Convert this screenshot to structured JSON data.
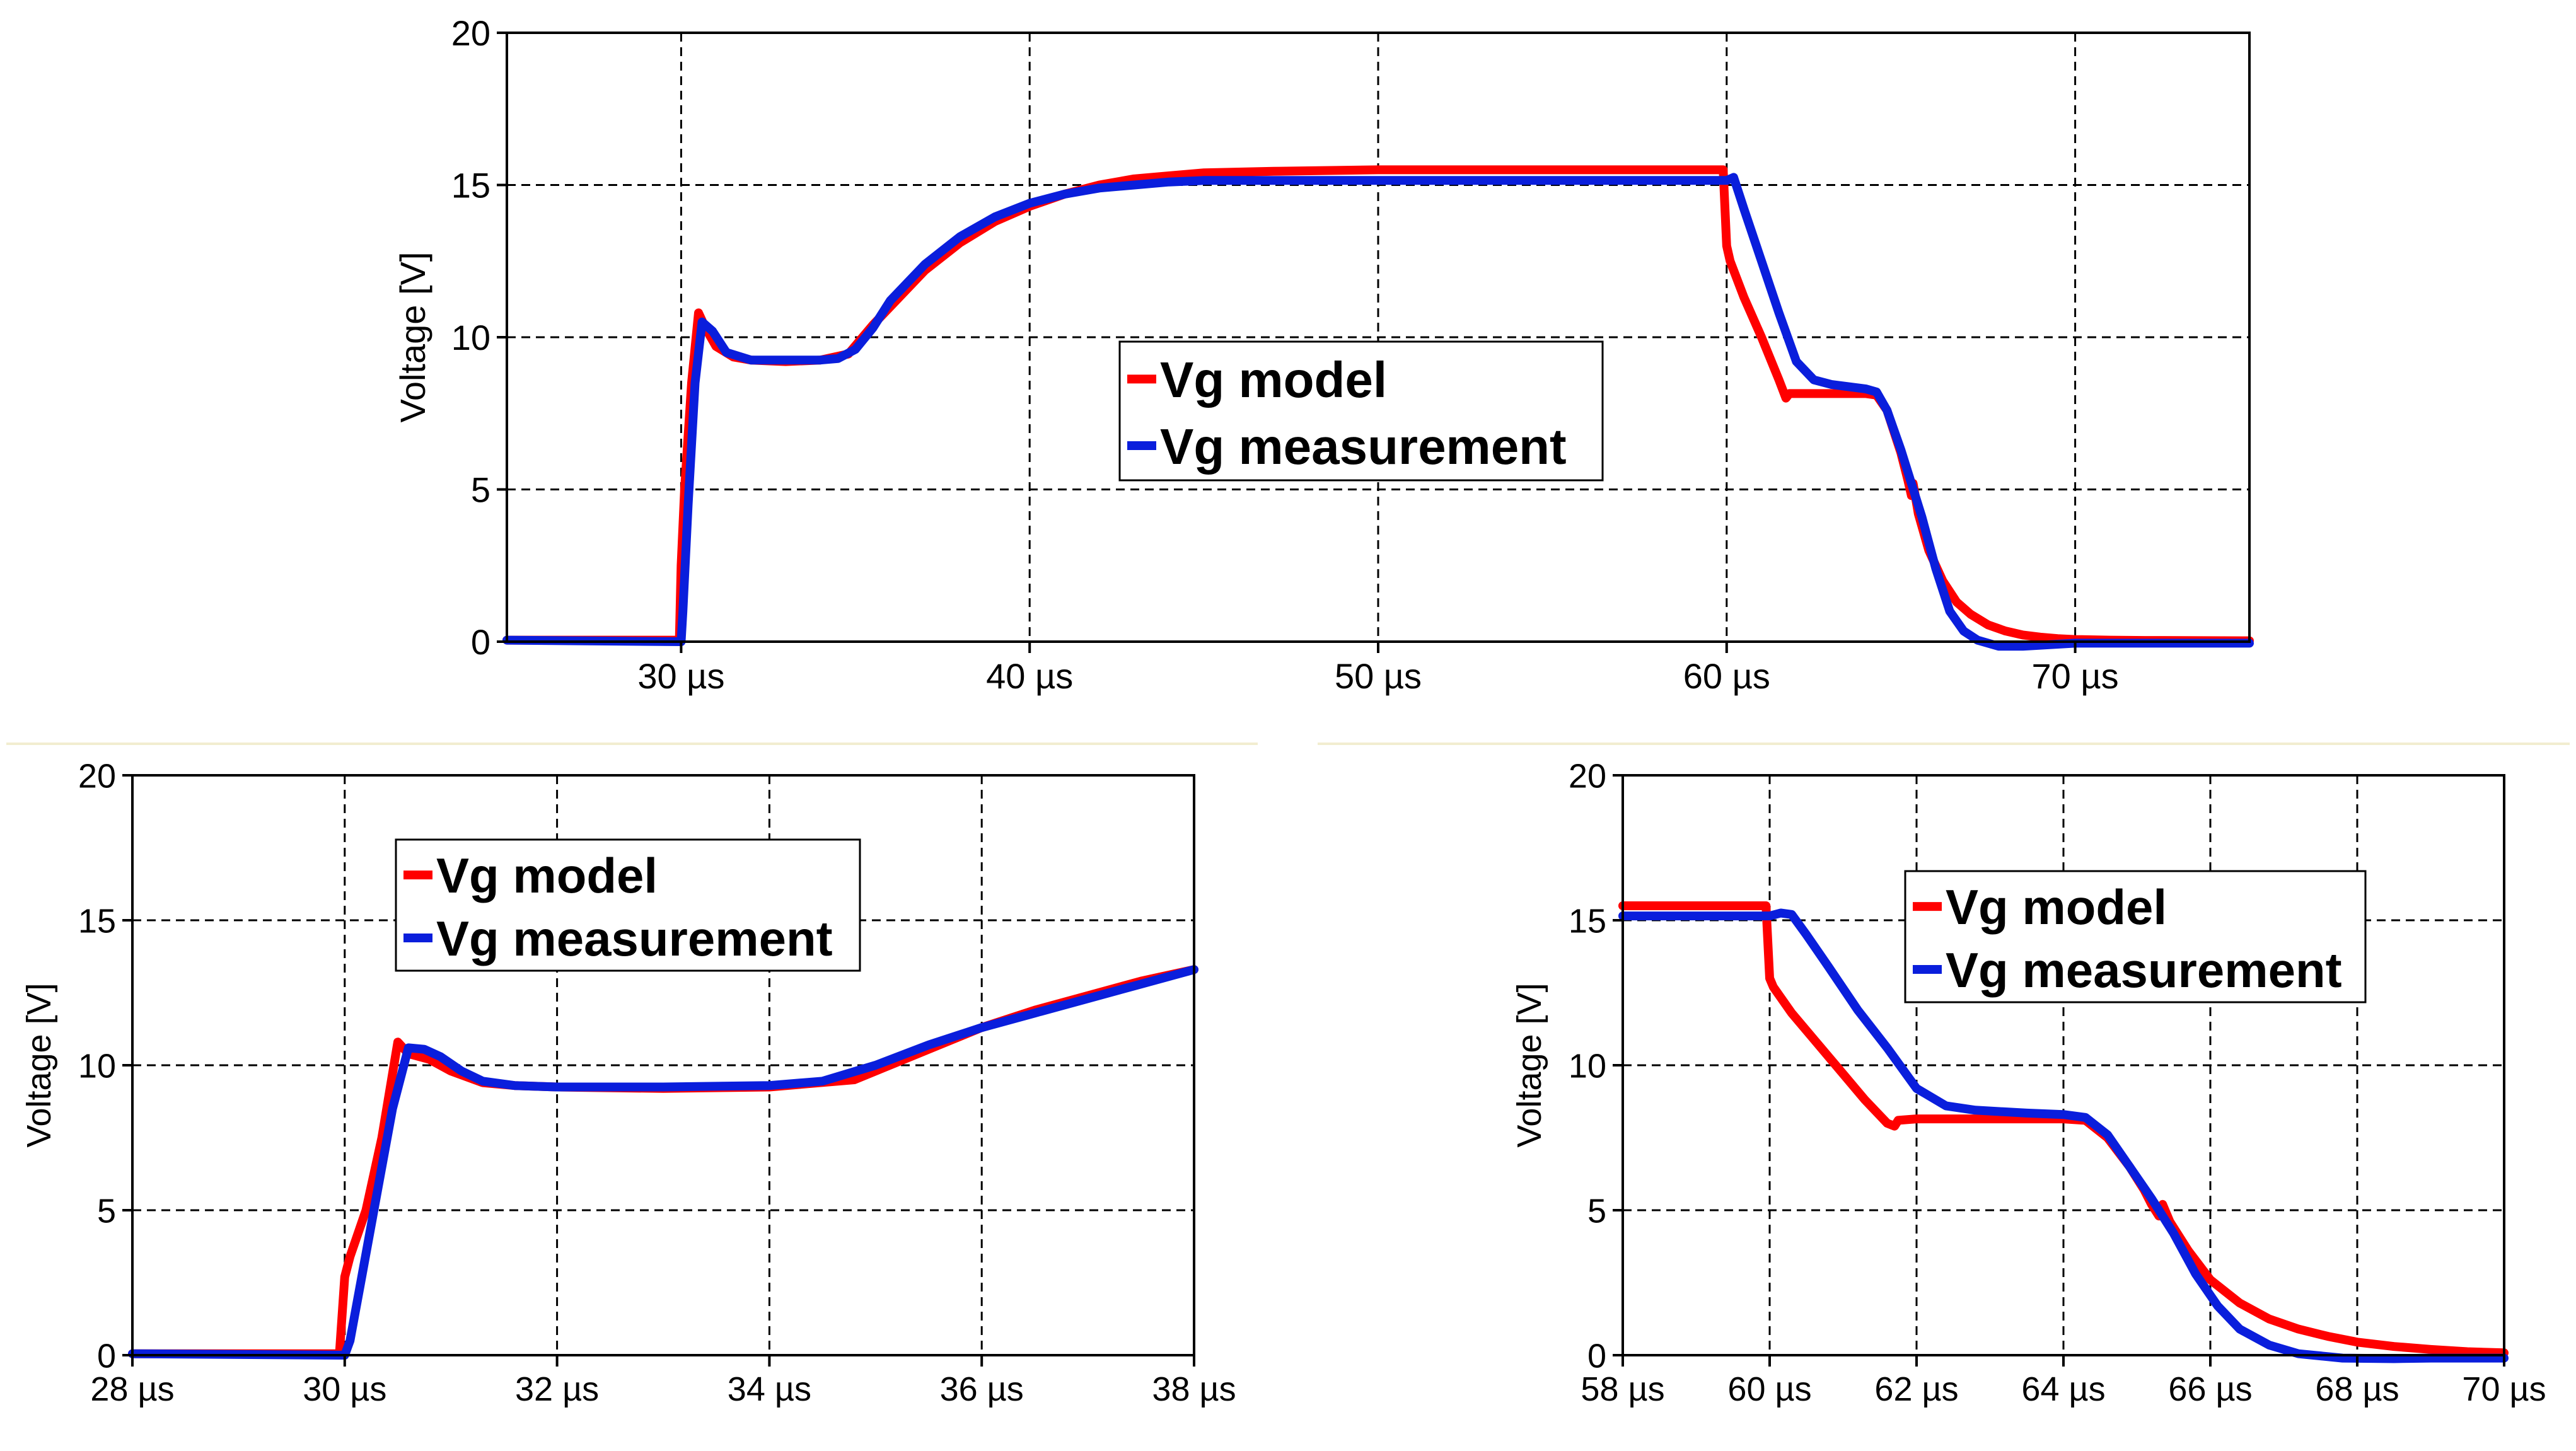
{
  "chart_data": [
    {
      "type": "line",
      "panel": "top",
      "title": "",
      "xlabel": "",
      "ylabel": "Voltage [V]",
      "xlim": [
        25,
        75
      ],
      "ylim": [
        0,
        20
      ],
      "xticks": [
        30,
        40,
        50,
        60,
        70
      ],
      "xtick_labels": [
        "30 µs",
        "40 µs",
        "50 µs",
        "60 µs",
        "70 µs"
      ],
      "yticks": [
        0,
        5,
        10,
        15,
        20
      ],
      "ytick_labels": [
        "0",
        "5",
        "10",
        "15",
        "20"
      ],
      "grid": true,
      "legend_position": "center",
      "series": [
        {
          "name": "Vg model",
          "color": "#ff0000",
          "x": [
            25,
            29.95,
            30.0,
            30.1,
            30.3,
            30.5,
            30.7,
            31.0,
            31.5,
            32,
            33,
            34,
            34.8,
            35.5,
            36,
            37,
            38,
            39,
            40,
            41,
            42,
            43,
            44,
            45,
            47,
            50,
            55,
            59.9,
            60.0,
            60.1,
            60.5,
            61.0,
            61.5,
            61.7,
            61.8,
            62,
            63,
            64,
            64.3,
            64.6,
            65.0,
            65.2,
            65.3,
            65.35,
            65.5,
            65.8,
            66.2,
            66.6,
            67,
            67.5,
            68,
            68.5,
            69,
            69.5,
            70,
            71,
            72,
            75
          ],
          "y": [
            0.05,
            0.05,
            2.5,
            5.0,
            8.5,
            10.8,
            10.3,
            9.7,
            9.35,
            9.25,
            9.2,
            9.25,
            9.45,
            10.4,
            11.0,
            12.2,
            13.1,
            13.8,
            14.3,
            14.7,
            15.0,
            15.2,
            15.3,
            15.4,
            15.45,
            15.5,
            15.5,
            15.5,
            13.0,
            12.5,
            11.3,
            10.0,
            8.6,
            8.0,
            8.15,
            8.15,
            8.15,
            8.15,
            8.1,
            7.6,
            6.2,
            5.3,
            4.8,
            5.2,
            4.2,
            3.0,
            2.0,
            1.3,
            0.9,
            0.55,
            0.35,
            0.22,
            0.15,
            0.1,
            0.07,
            0.05,
            0.04,
            0.03
          ]
        },
        {
          "name": "Vg measurement",
          "color": "#0a1edc",
          "x": [
            25,
            30.0,
            30.05,
            30.2,
            30.4,
            30.6,
            30.9,
            31.3,
            32,
            33,
            34,
            34.5,
            35,
            35.5,
            36,
            37,
            38,
            39,
            40,
            41,
            42,
            43,
            44,
            45,
            47,
            50,
            55,
            60.0,
            60.2,
            60.3,
            60.5,
            61,
            61.5,
            62,
            62.5,
            63,
            64,
            64.3,
            64.6,
            65,
            65.3,
            65.6,
            66,
            66.4,
            66.8,
            67.2,
            67.8,
            68.5,
            70,
            72,
            75
          ],
          "y": [
            0.05,
            0.0,
            1.0,
            4.5,
            8.5,
            10.5,
            10.2,
            9.5,
            9.25,
            9.25,
            9.25,
            9.3,
            9.6,
            10.3,
            11.2,
            12.4,
            13.3,
            13.95,
            14.4,
            14.7,
            14.9,
            15.0,
            15.1,
            15.15,
            15.15,
            15.15,
            15.15,
            15.15,
            15.25,
            14.9,
            14.2,
            12.5,
            10.8,
            9.2,
            8.6,
            8.45,
            8.3,
            8.2,
            7.6,
            6.3,
            5.2,
            4.1,
            2.4,
            1.0,
            0.35,
            0.05,
            -0.15,
            -0.15,
            -0.05,
            -0.05,
            -0.05
          ]
        }
      ]
    },
    {
      "type": "line",
      "panel": "bottom-left",
      "title": "",
      "xlabel": "",
      "ylabel": "Voltage [V]",
      "xlim": [
        28,
        38
      ],
      "ylim": [
        0,
        20
      ],
      "xticks": [
        28,
        30,
        32,
        34,
        36,
        38
      ],
      "xtick_labels": [
        "28 µs",
        "30 µs",
        "32 µs",
        "34 µs",
        "36 µs",
        "38 µs"
      ],
      "yticks": [
        0,
        5,
        10,
        15,
        20
      ],
      "ytick_labels": [
        "0",
        "5",
        "10",
        "15",
        "20"
      ],
      "grid": true,
      "legend_position": "top-left",
      "series": [
        {
          "name": "Vg model",
          "color": "#ff0000",
          "x": [
            28,
            29.95,
            30.0,
            30.05,
            30.2,
            30.35,
            30.5,
            30.6,
            30.8,
            31.0,
            31.3,
            31.6,
            32,
            33,
            34,
            34.8,
            35.2,
            35.6,
            36,
            36.5,
            37,
            37.5,
            38
          ],
          "y": [
            0.05,
            0.05,
            2.7,
            3.4,
            5.0,
            7.5,
            10.8,
            10.4,
            10.2,
            9.8,
            9.4,
            9.3,
            9.25,
            9.2,
            9.25,
            9.5,
            10.1,
            10.7,
            11.3,
            11.9,
            12.4,
            12.9,
            13.3
          ]
        },
        {
          "name": "Vg measurement",
          "color": "#0a1edc",
          "x": [
            28,
            30.0,
            30.05,
            30.15,
            30.3,
            30.45,
            30.6,
            30.75,
            30.9,
            31.1,
            31.3,
            31.6,
            32,
            33,
            34,
            34.5,
            35.0,
            35.5,
            36,
            36.5,
            37,
            37.5,
            38
          ],
          "y": [
            0.05,
            0.0,
            0.5,
            2.5,
            5.5,
            8.5,
            10.6,
            10.55,
            10.3,
            9.8,
            9.45,
            9.3,
            9.25,
            9.25,
            9.3,
            9.45,
            10.0,
            10.7,
            11.3,
            11.8,
            12.3,
            12.8,
            13.3
          ]
        }
      ]
    },
    {
      "type": "line",
      "panel": "bottom-right",
      "title": "",
      "xlabel": "",
      "ylabel": "Voltage [V]",
      "xlim": [
        58,
        70
      ],
      "ylim": [
        0,
        20
      ],
      "xticks": [
        58,
        60,
        62,
        64,
        66,
        68,
        70
      ],
      "xtick_labels": [
        "58 µs",
        "60 µs",
        "62 µs",
        "64 µs",
        "66 µs",
        "68 µs",
        "70 µs"
      ],
      "yticks": [
        0,
        5,
        10,
        15,
        20
      ],
      "ytick_labels": [
        "0",
        "5",
        "10",
        "15",
        "20"
      ],
      "grid": true,
      "legend_position": "top-right",
      "series": [
        {
          "name": "Vg model",
          "color": "#ff0000",
          "x": [
            58,
            59.95,
            60.0,
            60.05,
            60.3,
            60.6,
            61.0,
            61.3,
            61.6,
            61.7,
            61.75,
            62,
            63,
            64,
            64.3,
            64.6,
            64.9,
            65.1,
            65.2,
            65.3,
            65.35,
            65.45,
            65.7,
            66.0,
            66.4,
            66.8,
            67.2,
            67.6,
            68.0,
            68.5,
            69,
            69.5,
            70
          ],
          "y": [
            15.5,
            15.5,
            13.0,
            12.7,
            11.8,
            10.9,
            9.7,
            8.8,
            8.0,
            7.9,
            8.1,
            8.15,
            8.15,
            8.15,
            8.1,
            7.5,
            6.5,
            5.7,
            5.2,
            4.8,
            5.2,
            4.6,
            3.6,
            2.6,
            1.8,
            1.25,
            0.9,
            0.65,
            0.45,
            0.3,
            0.2,
            0.12,
            0.08
          ]
        },
        {
          "name": "Vg measurement",
          "color": "#0a1edc",
          "x": [
            58,
            60.0,
            60.15,
            60.3,
            60.5,
            60.8,
            61.2,
            61.6,
            62.0,
            62.4,
            62.8,
            63.5,
            64.0,
            64.3,
            64.6,
            64.9,
            65.2,
            65.5,
            65.8,
            66.1,
            66.4,
            66.8,
            67.2,
            67.8,
            68.5,
            69,
            70
          ],
          "y": [
            15.15,
            15.15,
            15.25,
            15.2,
            14.5,
            13.4,
            11.9,
            10.6,
            9.2,
            8.6,
            8.45,
            8.35,
            8.3,
            8.2,
            7.6,
            6.5,
            5.4,
            4.2,
            2.8,
            1.7,
            0.9,
            0.35,
            0.05,
            -0.1,
            -0.12,
            -0.1,
            -0.1
          ]
        }
      ]
    }
  ]
}
